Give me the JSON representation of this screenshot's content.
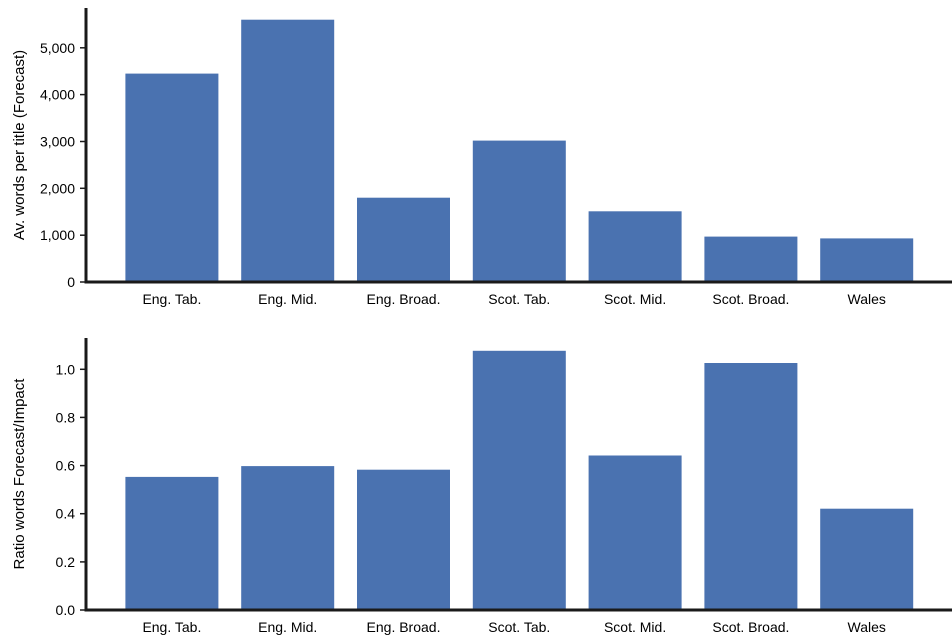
{
  "chart_data": [
    {
      "type": "bar",
      "categories": [
        "Eng. Tab.",
        "Eng. Mid.",
        "Eng. Broad.",
        "Scot. Tab.",
        "Scot. Mid.",
        "Scot. Broad.",
        "Wales"
      ],
      "values": [
        4450,
        5600,
        1800,
        3020,
        1510,
        970,
        930
      ],
      "ylabel": "Av. words per title (Forecast)",
      "yticks": [
        0,
        1000,
        2000,
        3000,
        4000,
        5000
      ],
      "ytick_labels": [
        "0",
        "1,000",
        "2,000",
        "3,000",
        "4,000",
        "5,000"
      ],
      "ylim": [
        0,
        5850
      ],
      "color": "#4a72b0",
      "grid": false
    },
    {
      "type": "bar",
      "categories": [
        "Eng. Tab.",
        "Eng. Mid.",
        "Eng. Broad.",
        "Scot. Tab.",
        "Scot. Mid.",
        "Scot. Broad.",
        "Wales"
      ],
      "values": [
        0.553,
        0.598,
        0.583,
        1.077,
        0.642,
        1.026,
        0.421
      ],
      "ylabel": "Ratio words Forecast/Impact",
      "yticks": [
        0,
        0.2,
        0.4,
        0.6,
        0.8,
        1.0
      ],
      "ytick_labels": [
        "0.0",
        "0.2",
        "0.4",
        "0.6",
        "0.8",
        "1.0"
      ],
      "ylim": [
        0,
        1.13
      ],
      "color": "#4a72b0",
      "grid": false
    }
  ]
}
